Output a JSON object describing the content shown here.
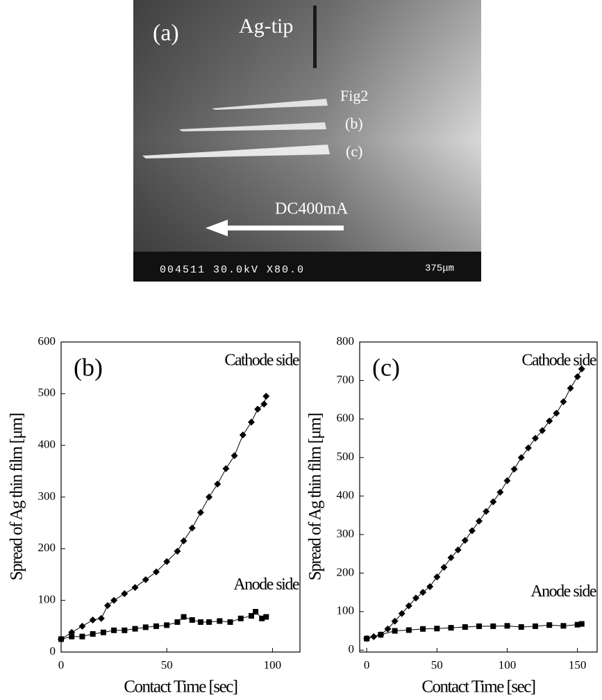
{
  "photo": {
    "panel_label": "(a)",
    "tip_label": "Ag-tip",
    "fig_label": "Fig2",
    "streak_b": "(b)",
    "streak_c": "(c)",
    "current_label": "DC400mA",
    "info_bar": "004511 30.0kV X80.0",
    "scale_label": "375μm"
  },
  "chart_data": [
    {
      "type": "line",
      "title": "(b)",
      "x_label": "Contact Time [sec]",
      "y_label": "Spread of Ag thin film [μm]",
      "xlim": [
        0,
        113
      ],
      "ylim": [
        0,
        600
      ],
      "xticks": [
        0,
        50,
        100
      ],
      "yticks": [
        0,
        100,
        200,
        300,
        400,
        500,
        600
      ],
      "series": [
        {
          "name": "Cathode side",
          "color": "#000000",
          "marker": "diamond",
          "x": [
            0,
            5,
            10,
            15,
            19,
            22,
            25,
            30,
            35,
            40,
            45,
            50,
            55,
            58,
            62,
            66,
            70,
            74,
            78,
            82,
            86,
            90,
            93,
            96,
            97
          ],
          "values": [
            25,
            38,
            50,
            62,
            65,
            90,
            100,
            113,
            125,
            140,
            155,
            175,
            195,
            215,
            240,
            270,
            300,
            325,
            355,
            380,
            420,
            445,
            470,
            480,
            495
          ]
        },
        {
          "name": "Anode side",
          "color": "#000000",
          "marker": "square",
          "x": [
            0,
            5,
            10,
            15,
            20,
            25,
            30,
            35,
            40,
            45,
            50,
            55,
            58,
            62,
            66,
            70,
            75,
            80,
            85,
            90,
            92,
            95,
            97
          ],
          "values": [
            25,
            30,
            30,
            35,
            38,
            42,
            42,
            45,
            48,
            50,
            52,
            58,
            68,
            62,
            58,
            58,
            60,
            58,
            65,
            70,
            78,
            65,
            68
          ]
        }
      ]
    },
    {
      "type": "line",
      "title": "(c)",
      "x_label": "Contact Time [sec]",
      "y_label": "Spread of Ag thin film [μm]",
      "xlim": [
        -5,
        164
      ],
      "ylim": [
        -5,
        800
      ],
      "xticks": [
        0,
        50,
        100,
        150
      ],
      "yticks": [
        0,
        100,
        200,
        300,
        400,
        500,
        600,
        700,
        800
      ],
      "series": [
        {
          "name": "Cathode side",
          "color": "#000000",
          "marker": "diamond",
          "x": [
            0,
            5,
            10,
            15,
            20,
            25,
            30,
            35,
            40,
            45,
            50,
            55,
            60,
            65,
            70,
            75,
            80,
            85,
            90,
            95,
            100,
            105,
            110,
            115,
            120,
            125,
            130,
            135,
            140,
            145,
            150,
            153
          ],
          "values": [
            30,
            35,
            40,
            55,
            75,
            95,
            115,
            135,
            150,
            165,
            190,
            215,
            240,
            260,
            285,
            310,
            335,
            360,
            385,
            410,
            440,
            470,
            500,
            525,
            550,
            570,
            595,
            615,
            645,
            680,
            710,
            730
          ]
        },
        {
          "name": "Anode side",
          "color": "#000000",
          "marker": "square",
          "x": [
            0,
            10,
            20,
            30,
            40,
            50,
            60,
            70,
            80,
            90,
            100,
            110,
            120,
            130,
            140,
            150,
            153
          ],
          "values": [
            30,
            40,
            50,
            52,
            55,
            56,
            58,
            60,
            62,
            62,
            63,
            60,
            62,
            65,
            63,
            66,
            68
          ]
        }
      ]
    }
  ]
}
